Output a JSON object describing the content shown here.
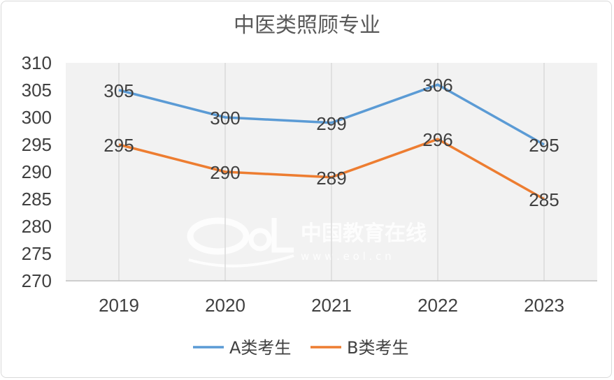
{
  "watermark": {
    "text": "中国教育在线",
    "url_text": "w w w . e o l . c n"
  },
  "chart_data": {
    "type": "line",
    "title": "中医类照顾专业",
    "categories": [
      "2019",
      "2020",
      "2021",
      "2022",
      "2023"
    ],
    "series": [
      {
        "name": "A类考生",
        "values": [
          305,
          300,
          299,
          306,
          295
        ],
        "color": "#5b9bd5"
      },
      {
        "name": "B类考生",
        "values": [
          295,
          290,
          289,
          296,
          285
        ],
        "color": "#ed7d31"
      }
    ],
    "ylim": [
      270,
      310
    ],
    "yticks": [
      "310",
      "305",
      "300",
      "295",
      "290",
      "285",
      "280",
      "275",
      "270"
    ],
    "data_labels": true,
    "grid": "vertical",
    "legend": "bottom",
    "xlabel": "",
    "ylabel": ""
  }
}
